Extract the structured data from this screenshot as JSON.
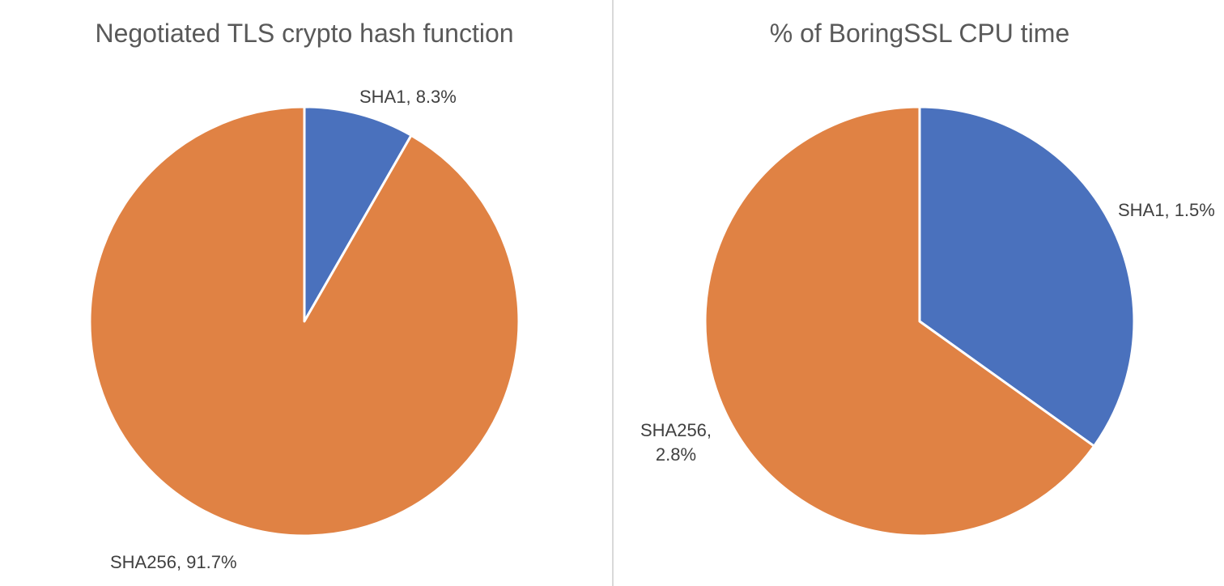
{
  "chart_data": [
    {
      "type": "pie",
      "title": "Negotiated TLS crypto hash function",
      "start_angle_deg": 0,
      "direction": "clockwise",
      "slices": [
        {
          "name": "SHA1",
          "value": 8.3,
          "color": "#4a71bd",
          "label_lines": [
            "SHA1, 8.3%"
          ]
        },
        {
          "name": "SHA256",
          "value": 91.7,
          "color": "#e08244",
          "label_lines": [
            "SHA256, 91.7%"
          ]
        }
      ]
    },
    {
      "type": "pie",
      "title": "% of BoringSSL CPU time",
      "start_angle_deg": 0,
      "direction": "clockwise",
      "slices": [
        {
          "name": "SHA1",
          "value": 1.5,
          "color": "#4a71bd",
          "label_lines": [
            "SHA1, 1.5%"
          ]
        },
        {
          "name": "SHA256",
          "value": 2.8,
          "color": "#e08244",
          "label_lines": [
            "SHA256,",
            "2.8%"
          ]
        }
      ]
    }
  ],
  "divider_color": "#d9d9d9",
  "slice_border_color": "#ffffff"
}
